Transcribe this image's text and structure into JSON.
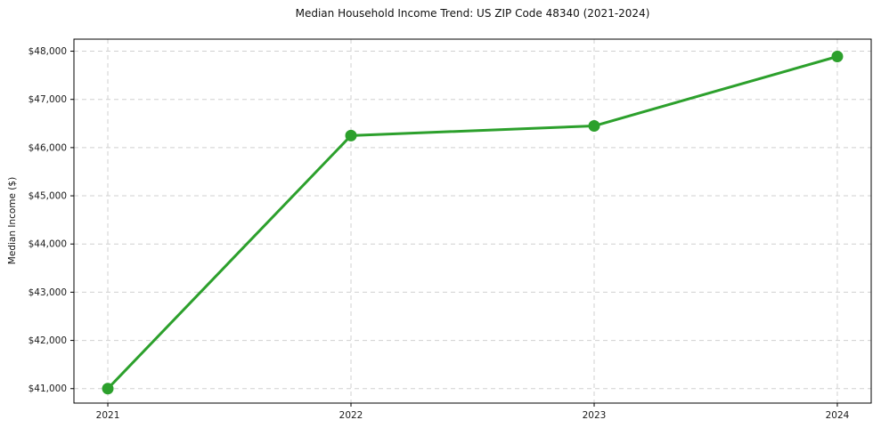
{
  "chart_data": {
    "type": "line",
    "title": "Median Household Income Trend: US ZIP Code 48340 (2021-2024)",
    "xlabel": "",
    "ylabel": "Median Income ($)",
    "categories": [
      "2021",
      "2022",
      "2023",
      "2024"
    ],
    "values": [
      41000,
      46250,
      46450,
      47890
    ],
    "ylim": [
      40700,
      48250
    ],
    "y_tick_values": [
      41000,
      42000,
      43000,
      44000,
      45000,
      46000,
      47000,
      48000
    ],
    "y_tick_labels": [
      "$41,000",
      "$42,000",
      "$43,000",
      "$44,000",
      "$45,000",
      "$46,000",
      "$47,000",
      "$48,000"
    ],
    "grid": "dashed",
    "legend": "none",
    "line_color": "#2ca02c",
    "marker": "circle",
    "grid_color": "#d0d0d0",
    "spine_color": "#000000",
    "tick_label_color": "#1a1a1a"
  }
}
